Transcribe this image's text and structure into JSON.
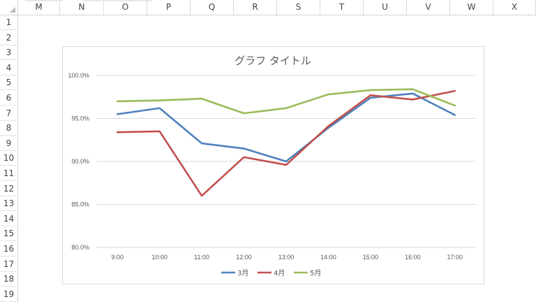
{
  "spreadsheet": {
    "columns": [
      "M",
      "N",
      "O",
      "P",
      "Q",
      "R",
      "S",
      "T",
      "U",
      "V",
      "W",
      "X"
    ],
    "rows": [
      "1",
      "2",
      "3",
      "4",
      "5",
      "6",
      "7",
      "8",
      "9",
      "10",
      "11",
      "12",
      "13",
      "14",
      "15",
      "16",
      "17",
      "18",
      "19"
    ]
  },
  "chart_data": {
    "type": "line",
    "title": "グラフ タイトル",
    "categories": [
      "9:00",
      "10:00",
      "11:00",
      "12:00",
      "13:00",
      "14:00",
      "15:00",
      "16:00",
      "17:00"
    ],
    "series": [
      {
        "name": "3月",
        "color": "#4f81bd",
        "values": [
          95.5,
          96.2,
          92.1,
          91.5,
          90.0,
          93.9,
          97.4,
          97.9,
          95.4
        ]
      },
      {
        "name": "4月",
        "color": "#c0504d",
        "values": [
          93.4,
          93.5,
          86.0,
          90.5,
          89.6,
          94.1,
          97.7,
          97.2,
          98.2
        ]
      },
      {
        "name": "5月",
        "color": "#9bbb59",
        "values": [
          97.0,
          97.1,
          97.3,
          95.6,
          96.2,
          97.8,
          98.3,
          98.4,
          96.5
        ]
      }
    ],
    "y_ticks": [
      "80.0%",
      "85.0%",
      "90.0%",
      "95.0%",
      "100.0%"
    ],
    "ylim": [
      80,
      100
    ],
    "ylabel": "",
    "xlabel": "",
    "grid": true,
    "legend": "bottom"
  }
}
